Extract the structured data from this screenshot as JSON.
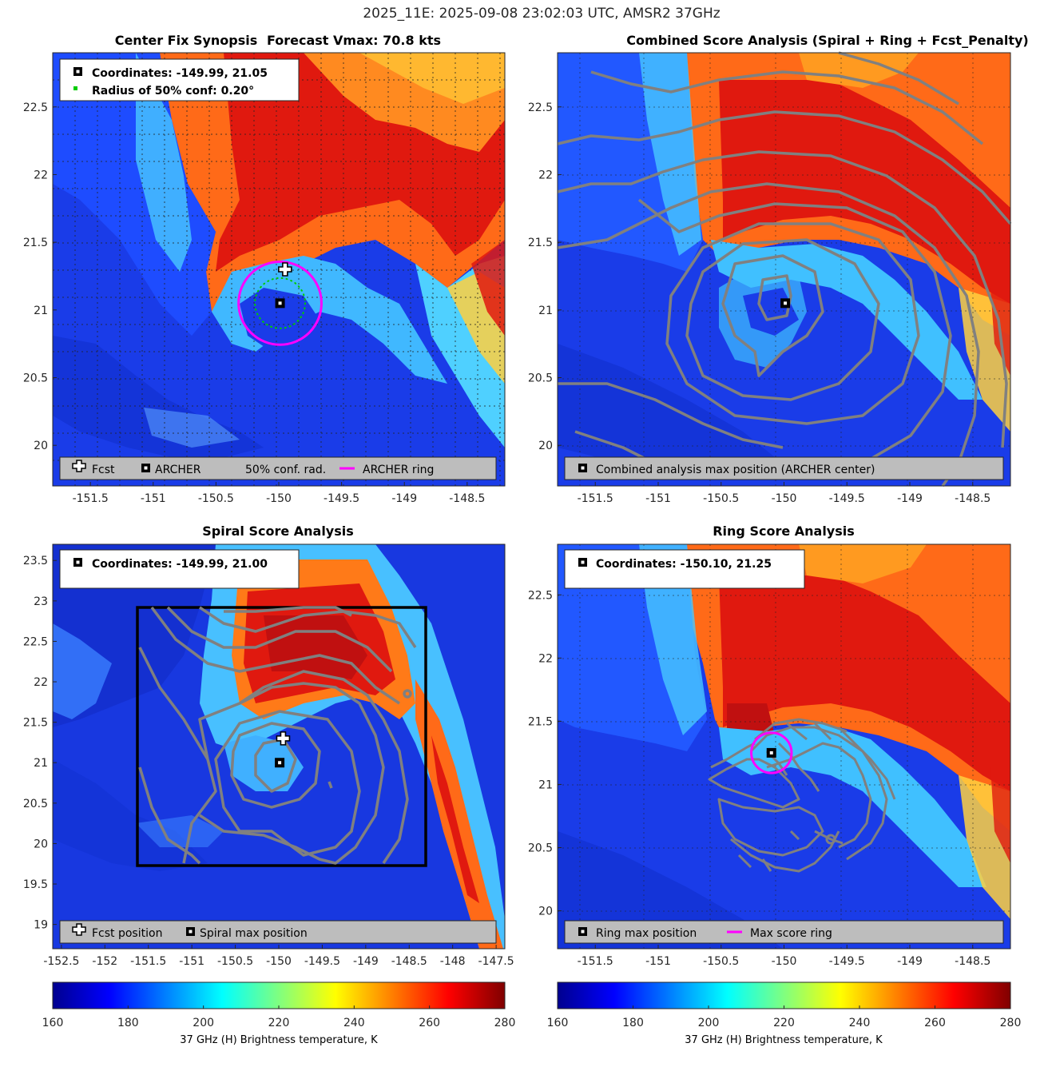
{
  "figure": {
    "suptitle": "2025_11E: 2025-09-08 23:02:03 UTC, AMSR2 37GHz"
  },
  "colors": {
    "magenta": "#ff00ff",
    "contour": "#808080",
    "legend_bg": "#bdbdbd",
    "green": "#00cc00"
  },
  "chart_data": [
    {
      "id": "center-fix",
      "type": "heatmap",
      "title": "Center Fix Synopsis",
      "title2": "Forecast Vmax: 70.8 kts",
      "xlim": [
        -151.8,
        -148.2
      ],
      "ylim": [
        19.7,
        22.9
      ],
      "xticks": [
        -151.5,
        -151,
        -150.5,
        -150,
        -149.5,
        -149,
        -148.5
      ],
      "yticks": [
        20,
        20.5,
        21,
        21.5,
        22,
        22.5
      ],
      "info_lines": [
        "Coordinates: -149.99, 21.05",
        "Radius of 50% conf: 0.20°"
      ],
      "legend": [
        "Fcst",
        "ARCHER",
        "50% conf. rad.",
        "ARCHER ring"
      ],
      "fcst": [
        -149.95,
        21.3
      ],
      "archer": [
        -149.99,
        21.05
      ],
      "ring_radius_deg": 0.33,
      "conf_radius_deg": 0.2
    },
    {
      "id": "combined",
      "type": "heatmap",
      "title": "Combined Score Analysis (Spiral + Ring + Fcst_Penalty)",
      "xlim": [
        -151.8,
        -148.2
      ],
      "ylim": [
        19.7,
        22.9
      ],
      "xticks": [
        -151.5,
        -151,
        -150.5,
        -150,
        -149.5,
        -149,
        -148.5
      ],
      "yticks": [
        20,
        20.5,
        21,
        21.5,
        22,
        22.5
      ],
      "legend": [
        "Combined analysis max position (ARCHER center)"
      ],
      "max": [
        -149.99,
        21.05
      ]
    },
    {
      "id": "spiral",
      "type": "heatmap",
      "title": "Spiral Score Analysis",
      "xlim": [
        -152.6,
        -147.4
      ],
      "ylim": [
        18.7,
        23.7
      ],
      "xticks": [
        -152.5,
        -152,
        -151.5,
        -151,
        -150.5,
        -150,
        -149.5,
        -149,
        -148.5,
        -148,
        -147.5
      ],
      "yticks": [
        19,
        19.5,
        20,
        20.5,
        21,
        21.5,
        22,
        22.5,
        23,
        23.5
      ],
      "info_lines": [
        "Coordinates: -149.99, 21.00"
      ],
      "legend": [
        "Fcst position",
        "Spiral max position"
      ],
      "fcst": [
        -149.95,
        21.3
      ],
      "max": [
        -149.99,
        21.0
      ],
      "box": {
        "lon": [
          -151.6,
          -148.3
        ],
        "lat": [
          19.7,
          22.9
        ]
      }
    },
    {
      "id": "ring",
      "type": "heatmap",
      "title": "Ring Score Analysis",
      "xlim": [
        -151.8,
        -148.2
      ],
      "ylim": [
        19.7,
        22.9
      ],
      "xticks": [
        -151.5,
        -151,
        -150.5,
        -150,
        -149.5,
        -149,
        -148.5
      ],
      "yticks": [
        20,
        20.5,
        21,
        21.5,
        22,
        22.5
      ],
      "info_lines": [
        "Coordinates: -150.10, 21.25"
      ],
      "legend": [
        "Ring max position",
        "Max score ring"
      ],
      "max": [
        -150.1,
        21.25
      ],
      "ring_radius_deg": 0.16
    }
  ],
  "colorbars": [
    {
      "ticks": [
        160,
        180,
        200,
        220,
        240,
        260,
        280
      ],
      "label": "37 GHz (H) Brightness temperature, K",
      "range": [
        160,
        280
      ]
    },
    {
      "ticks": [
        160,
        180,
        200,
        220,
        240,
        260,
        280
      ],
      "label": "37 GHz (H) Brightness temperature, K",
      "range": [
        160,
        280
      ]
    }
  ]
}
